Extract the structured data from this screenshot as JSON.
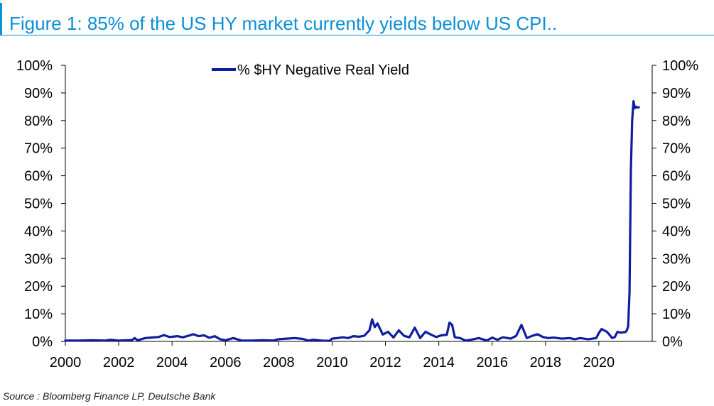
{
  "title": "Figure 1: 85% of the US HY market currently yields below US CPI..",
  "source": "Source : Bloomberg Finance LP, Deutsche Bank",
  "colors": {
    "accent": "#0b8fd6",
    "series": "#0f1e9e"
  },
  "chart_data": {
    "type": "line",
    "title": "Figure 1: 85% of the US HY market currently yields below US CPI..",
    "xlabel": "",
    "ylabel": "",
    "xlim": [
      2000,
      2022
    ],
    "ylim": [
      0,
      100
    ],
    "x_ticks": [
      "2000",
      "2002",
      "2004",
      "2006",
      "2008",
      "2010",
      "2012",
      "2014",
      "2016",
      "2018",
      "2020"
    ],
    "y_ticks_left": [
      "100%",
      "90%",
      "80%",
      "70%",
      "60%",
      "50%",
      "40%",
      "30%",
      "20%",
      "10%",
      "0%"
    ],
    "y_ticks_right": [
      "100%",
      "90%",
      "80%",
      "70%",
      "60%",
      "50%",
      "40%",
      "30%",
      "20%",
      "10%",
      "0%"
    ],
    "legend_position": "top-center",
    "grid": false,
    "series": [
      {
        "name": "% $HY Negative Real Yield",
        "x": [
          2000.0,
          2000.5,
          2001.0,
          2001.5,
          2001.7,
          2002.0,
          2002.5,
          2002.6,
          2002.7,
          2003.0,
          2003.2,
          2003.5,
          2003.7,
          2003.9,
          2004.2,
          2004.4,
          2004.6,
          2004.8,
          2005.0,
          2005.2,
          2005.4,
          2005.6,
          2005.8,
          2006.0,
          2006.3,
          2006.6,
          2007.0,
          2007.4,
          2007.8,
          2008.0,
          2008.3,
          2008.6,
          2008.9,
          2009.1,
          2009.3,
          2009.6,
          2009.9,
          2010.0,
          2010.2,
          2010.4,
          2010.6,
          2010.8,
          2011.0,
          2011.2,
          2011.4,
          2011.5,
          2011.6,
          2011.7,
          2011.9,
          2012.1,
          2012.3,
          2012.5,
          2012.7,
          2012.9,
          2013.1,
          2013.3,
          2013.5,
          2013.7,
          2013.9,
          2014.1,
          2014.3,
          2014.4,
          2014.5,
          2014.6,
          2014.8,
          2015.0,
          2015.2,
          2015.5,
          2015.8,
          2016.0,
          2016.2,
          2016.4,
          2016.7,
          2016.9,
          2017.1,
          2017.3,
          2017.5,
          2017.7,
          2017.9,
          2018.1,
          2018.3,
          2018.6,
          2018.9,
          2019.1,
          2019.3,
          2019.6,
          2019.9,
          2020.0,
          2020.1,
          2020.3,
          2020.5,
          2020.6,
          2020.7,
          2020.8,
          2021.0,
          2021.05,
          2021.1,
          2021.15,
          2021.2,
          2021.25,
          2021.3,
          2021.35,
          2021.4,
          2021.45,
          2021.5
        ],
        "values": [
          0.3,
          0.3,
          0.4,
          0.3,
          0.6,
          0.3,
          0.5,
          1.2,
          0.4,
          1.2,
          1.4,
          1.6,
          2.3,
          1.6,
          1.9,
          1.5,
          2.0,
          2.6,
          1.9,
          2.2,
          1.3,
          1.9,
          0.8,
          0.4,
          1.2,
          0.3,
          0.3,
          0.4,
          0.3,
          0.8,
          1.0,
          1.2,
          0.9,
          0.3,
          0.6,
          0.3,
          0.2,
          1.0,
          1.2,
          1.5,
          1.2,
          1.9,
          1.7,
          2.0,
          4.0,
          8.0,
          5.2,
          6.5,
          2.5,
          3.5,
          1.4,
          4.0,
          2.0,
          1.5,
          5.0,
          1.2,
          3.5,
          2.5,
          1.6,
          2.2,
          2.4,
          6.8,
          6.0,
          1.5,
          1.2,
          0.3,
          0.6,
          1.2,
          0.3,
          1.4,
          0.6,
          1.5,
          1.0,
          2.0,
          6.0,
          1.2,
          2.0,
          2.6,
          1.6,
          1.2,
          1.4,
          1.0,
          1.2,
          0.8,
          1.2,
          0.8,
          1.2,
          3.0,
          4.5,
          3.5,
          1.2,
          1.6,
          3.5,
          3.2,
          3.4,
          4.0,
          5.5,
          18.0,
          62.0,
          80.0,
          87.0,
          84.5,
          85.0,
          84.7,
          84.8
        ]
      }
    ]
  }
}
